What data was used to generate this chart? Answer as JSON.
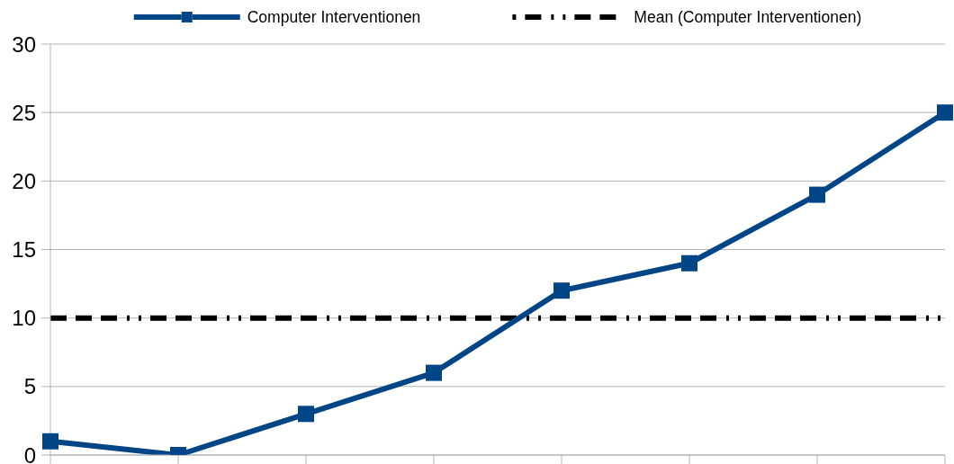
{
  "chart_data": {
    "type": "line",
    "categories": [
      null,
      null,
      null,
      null,
      null,
      null,
      null,
      null
    ],
    "series": [
      {
        "name": "Computer Interventionen",
        "color": "#004586",
        "values": [
          1,
          0,
          3,
          6,
          12,
          14,
          19,
          25
        ]
      }
    ],
    "ylim": [
      0,
      30
    ],
    "yticks": [
      0,
      5,
      10,
      15,
      20,
      25,
      30
    ],
    "grid": "y",
    "legend": "top",
    "marker": "square",
    "line_style": "solid",
    "ref_lines": [
      {
        "axis": "y",
        "value": 10,
        "label": "Mean (Computer Interventionen)",
        "color": "#000000",
        "line_style": "dashed"
      }
    ]
  }
}
